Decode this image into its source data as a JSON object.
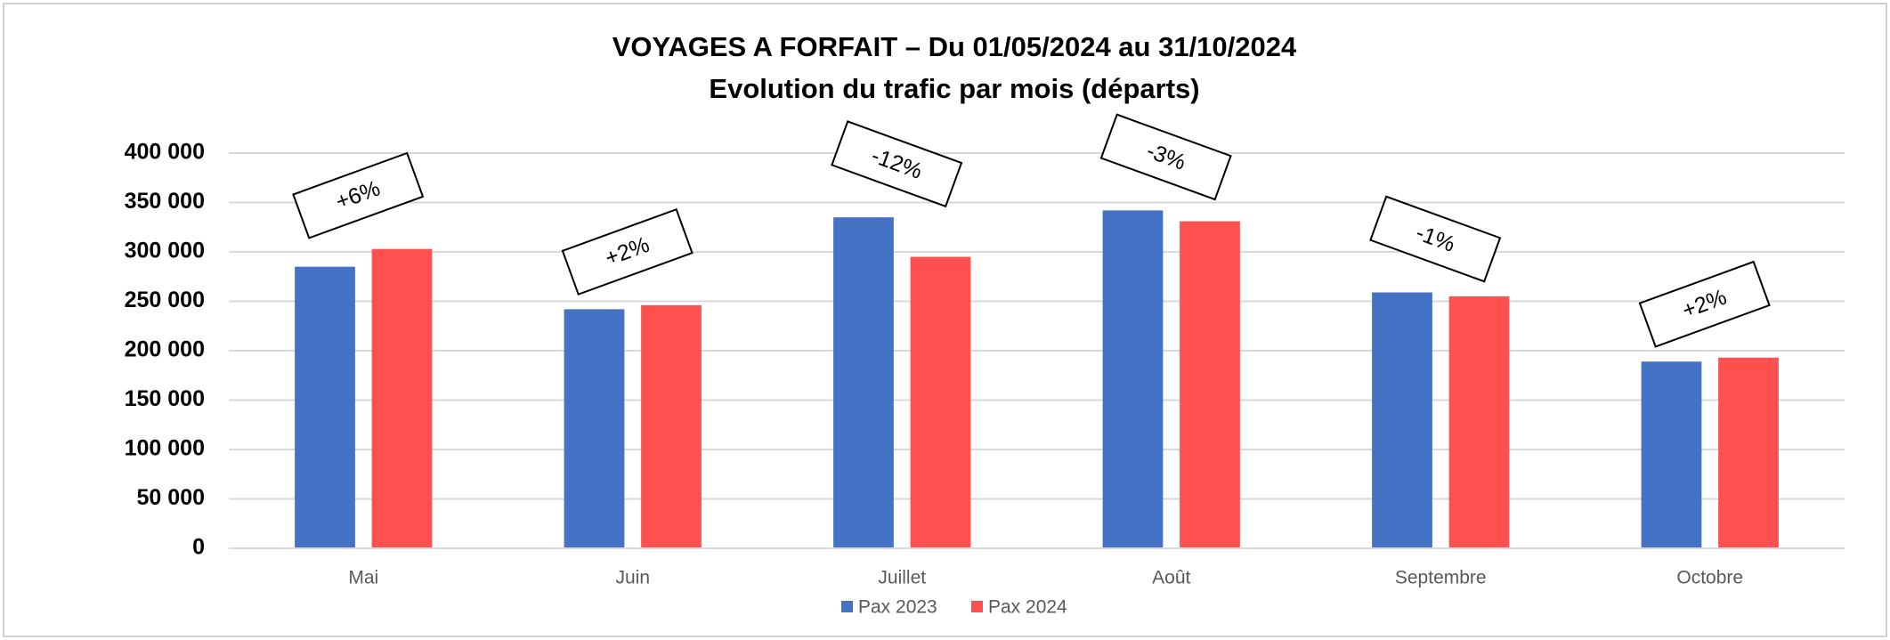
{
  "chart_data": {
    "type": "bar",
    "title": "VOYAGES A FORFAIT –  Du 01/05/2024 au 31/10/2024",
    "subtitle": "Evolution du trafic par mois (départs)",
    "categories": [
      "Mai",
      "Juin",
      "Juillet",
      "Août",
      "Septembre",
      "Octobre"
    ],
    "series": [
      {
        "name": "Pax 2023",
        "color": "#4472c4",
        "values": [
          285000,
          242000,
          335000,
          342000,
          259000,
          189000
        ]
      },
      {
        "name": "Pax 2024",
        "color": "#ff5050",
        "values": [
          303000,
          246000,
          295000,
          331000,
          255000,
          193000
        ]
      }
    ],
    "annotations": [
      "+6%",
      "+2%",
      "-12%",
      "-3%",
      "-1%",
      "+2%"
    ],
    "ylim": [
      0,
      400000
    ],
    "yticks": [
      0,
      {
        "value": 50000,
        "label": "50 000"
      },
      {
        "value": 100000,
        "label": "100 000"
      },
      {
        "value": 150000,
        "label": "150 000"
      },
      {
        "value": 200000,
        "label": "200 000"
      },
      {
        "value": 250000,
        "label": "250 000"
      },
      {
        "value": 300000,
        "label": "300 000"
      },
      {
        "value": 350000,
        "label": "350 000"
      },
      {
        "value": 400000,
        "label": "400 000"
      }
    ],
    "grid": true,
    "legend": "bottom"
  }
}
